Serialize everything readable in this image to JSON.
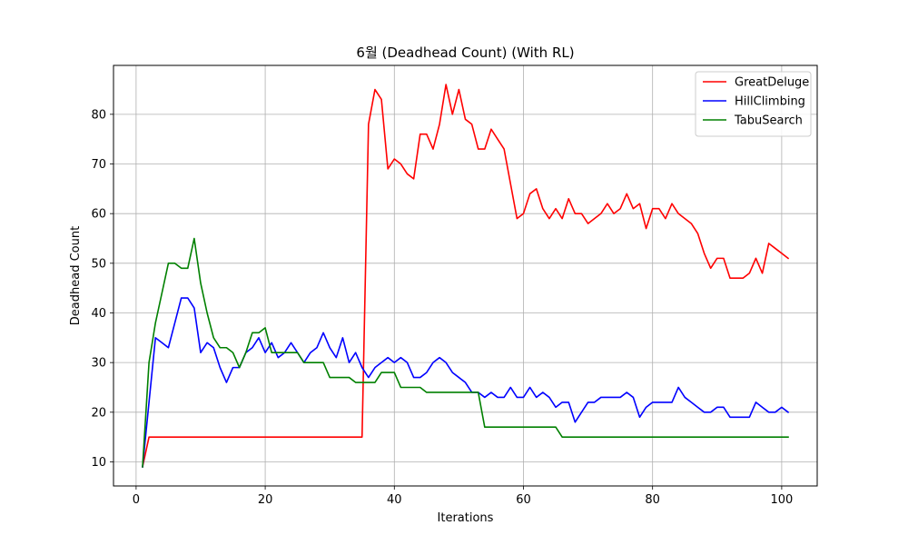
{
  "chart_data": {
    "type": "line",
    "title": "6월 (Deadhead Count) (With RL)",
    "xlabel": "Iterations",
    "ylabel": "Deadhead Count",
    "xlim": [
      -3.5,
      105.5
    ],
    "ylim": [
      5.15,
      89.85
    ],
    "xticks": [
      0,
      20,
      40,
      60,
      80,
      100
    ],
    "yticks": [
      10,
      20,
      30,
      40,
      50,
      60,
      70,
      80
    ],
    "grid": true,
    "legend_position": "top-right",
    "x": [
      1,
      2,
      3,
      4,
      5,
      6,
      7,
      8,
      9,
      10,
      11,
      12,
      13,
      14,
      15,
      16,
      17,
      18,
      19,
      20,
      21,
      22,
      23,
      24,
      25,
      26,
      27,
      28,
      29,
      30,
      31,
      32,
      33,
      34,
      35,
      36,
      37,
      38,
      39,
      40,
      41,
      42,
      43,
      44,
      45,
      46,
      47,
      48,
      49,
      50,
      51,
      52,
      53,
      54,
      55,
      56,
      57,
      58,
      59,
      60,
      61,
      62,
      63,
      64,
      65,
      66,
      67,
      68,
      69,
      70,
      71,
      72,
      73,
      74,
      75,
      76,
      77,
      78,
      79,
      80,
      81,
      82,
      83,
      84,
      85,
      86,
      87,
      88,
      89,
      90,
      91,
      92,
      93,
      94,
      95,
      96,
      97,
      98,
      99,
      100,
      101
    ],
    "series": [
      {
        "name": "GreatDeluge",
        "color": "#ff0000",
        "values": [
          9,
          15,
          15,
          15,
          15,
          15,
          15,
          15,
          15,
          15,
          15,
          15,
          15,
          15,
          15,
          15,
          15,
          15,
          15,
          15,
          15,
          15,
          15,
          15,
          15,
          15,
          15,
          15,
          15,
          15,
          15,
          15,
          15,
          15,
          15,
          78,
          85,
          83,
          69,
          71,
          70,
          68,
          67,
          76,
          76,
          73,
          78,
          86,
          80,
          85,
          79,
          78,
          73,
          73,
          77,
          75,
          73,
          66,
          59,
          60,
          64,
          65,
          61,
          59,
          61,
          59,
          63,
          60,
          60,
          58,
          59,
          60,
          62,
          60,
          61,
          64,
          61,
          62,
          57,
          61,
          61,
          59,
          62,
          60,
          59,
          58,
          56,
          52,
          49,
          51,
          51,
          47,
          47,
          47,
          48,
          51,
          48,
          54,
          53,
          52,
          51
        ]
      },
      {
        "name": "HillClimbing",
        "color": "#0000ff",
        "values": [
          9,
          22,
          35,
          34,
          33,
          38,
          43,
          43,
          41,
          32,
          34,
          33,
          29,
          26,
          29,
          29,
          32,
          33,
          35,
          32,
          34,
          31,
          32,
          34,
          32,
          30,
          32,
          33,
          36,
          33,
          31,
          35,
          30,
          32,
          29,
          27,
          29,
          30,
          31,
          30,
          31,
          30,
          27,
          27,
          28,
          30,
          31,
          30,
          28,
          27,
          26,
          24,
          24,
          23,
          24,
          23,
          23,
          25,
          23,
          23,
          25,
          23,
          24,
          23,
          21,
          22,
          22,
          18,
          20,
          22,
          22,
          23,
          23,
          23,
          23,
          24,
          23,
          19,
          21,
          22,
          22,
          22,
          22,
          25,
          23,
          22,
          21,
          20,
          20,
          21,
          21,
          19,
          19,
          19,
          19,
          22,
          21,
          20,
          20,
          21,
          20
        ]
      },
      {
        "name": "TabuSearch",
        "color": "#008000",
        "values": [
          9,
          30,
          38,
          44,
          50,
          50,
          49,
          49,
          55,
          46,
          40,
          35,
          33,
          33,
          32,
          29,
          32,
          36,
          36,
          37,
          32,
          32,
          32,
          32,
          32,
          30,
          30,
          30,
          30,
          27,
          27,
          27,
          27,
          26,
          26,
          26,
          26,
          28,
          28,
          28,
          25,
          25,
          25,
          25,
          24,
          24,
          24,
          24,
          24,
          24,
          24,
          24,
          24,
          17,
          17,
          17,
          17,
          17,
          17,
          17,
          17,
          17,
          17,
          17,
          17,
          15,
          15,
          15,
          15,
          15,
          15,
          15,
          15,
          15,
          15,
          15,
          15,
          15,
          15,
          15,
          15,
          15,
          15,
          15,
          15,
          15,
          15,
          15,
          15,
          15,
          15,
          15,
          15,
          15,
          15,
          15,
          15,
          15,
          15,
          15,
          15
        ]
      }
    ]
  }
}
